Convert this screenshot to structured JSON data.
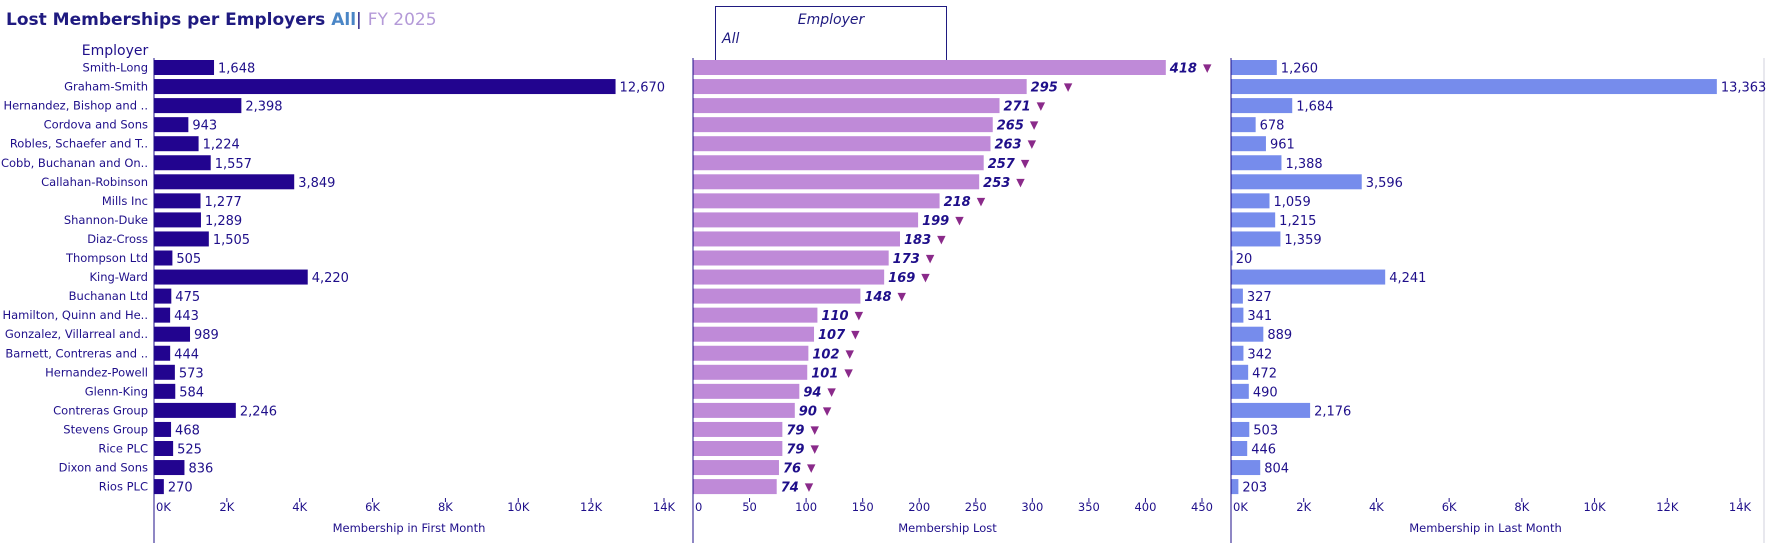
{
  "header": {
    "title": "Lost Memberships per Employers",
    "filter_value": "All",
    "separator": "|",
    "period": "FY 2025"
  },
  "filter": {
    "label": "Employer",
    "value": "All"
  },
  "colors": {
    "first_month": "#22048f",
    "lost": "#bf8ad8",
    "last_month": "#768cec",
    "arrow": "#8a2a8a",
    "text": "#1f0f8a"
  },
  "chart_data": [
    {
      "type": "bar",
      "orientation": "horizontal",
      "title": "",
      "category_header": "Employer",
      "categories": [
        "Smith-Long",
        "Graham-Smith",
        "Hernandez, Bishop and ..",
        "Cordova and Sons",
        "Robles, Schaefer and T..",
        "Cobb, Buchanan and On..",
        "Callahan-Robinson",
        "Mills Inc",
        "Shannon-Duke",
        "Diaz-Cross",
        "Thompson Ltd",
        "King-Ward",
        "Buchanan Ltd",
        "Hamilton, Quinn and He..",
        "Gonzalez, Villarreal and..",
        "Barnett, Contreras and ..",
        "Hernandez-Powell",
        "Glenn-King",
        "Contreras Group",
        "Stevens Group",
        "Rice PLC",
        "Dixon and Sons",
        "Rios PLC"
      ],
      "values": [
        1648,
        12670,
        2398,
        943,
        1224,
        1557,
        3849,
        1277,
        1289,
        1505,
        505,
        4220,
        475,
        443,
        989,
        444,
        573,
        584,
        2246,
        468,
        525,
        836,
        270
      ],
      "labels": [
        "1,648",
        "12,670",
        "2,398",
        "943",
        "1,224",
        "1,557",
        "3,849",
        "1,277",
        "1,289",
        "1,505",
        "505",
        "4,220",
        "475",
        "443",
        "989",
        "444",
        "573",
        "584",
        "2,246",
        "468",
        "525",
        "836",
        "270"
      ],
      "xlabel": "Membership in First Month",
      "xlim": [
        0,
        14000
      ],
      "ticks": [
        0,
        2000,
        4000,
        6000,
        8000,
        10000,
        12000,
        14000
      ],
      "tick_labels": [
        "0K",
        "2K",
        "4K",
        "6K",
        "8K",
        "10K",
        "12K",
        "14K"
      ]
    },
    {
      "type": "bar",
      "orientation": "horizontal",
      "title": "",
      "values": [
        418,
        295,
        271,
        265,
        263,
        257,
        253,
        218,
        199,
        183,
        173,
        169,
        148,
        110,
        107,
        102,
        101,
        94,
        90,
        79,
        79,
        76,
        74
      ],
      "labels": [
        "418",
        "295",
        "271",
        "265",
        "263",
        "257",
        "253",
        "218",
        "199",
        "183",
        "173",
        "169",
        "148",
        "110",
        "107",
        "102",
        "101",
        "94",
        "90",
        "79",
        "79",
        "76",
        "74"
      ],
      "marker": "▼",
      "xlabel": "Membership Lost",
      "xlim": [
        0,
        450
      ],
      "ticks": [
        0,
        50,
        100,
        150,
        200,
        250,
        300,
        350,
        400,
        450
      ],
      "tick_labels": [
        "0",
        "50",
        "100",
        "150",
        "200",
        "250",
        "300",
        "350",
        "400",
        "450"
      ]
    },
    {
      "type": "bar",
      "orientation": "horizontal",
      "title": "",
      "values": [
        1260,
        13363,
        1684,
        678,
        961,
        1388,
        3596,
        1059,
        1215,
        1359,
        20,
        4241,
        327,
        341,
        889,
        342,
        472,
        490,
        2176,
        503,
        446,
        804,
        203
      ],
      "labels": [
        "1,260",
        "13,363",
        "1,684",
        "678",
        "961",
        "1,388",
        "3,596",
        "1,059",
        "1,215",
        "1,359",
        "20",
        "4,241",
        "327",
        "341",
        "889",
        "342",
        "472",
        "490",
        "2,176",
        "503",
        "446",
        "804",
        "203"
      ],
      "xlabel": "Membership in Last Month",
      "xlim": [
        0,
        14000
      ],
      "ticks": [
        0,
        2000,
        4000,
        6000,
        8000,
        10000,
        12000,
        14000
      ],
      "tick_labels": [
        "0K",
        "2K",
        "4K",
        "6K",
        "8K",
        "10K",
        "12K",
        "14K"
      ]
    }
  ]
}
